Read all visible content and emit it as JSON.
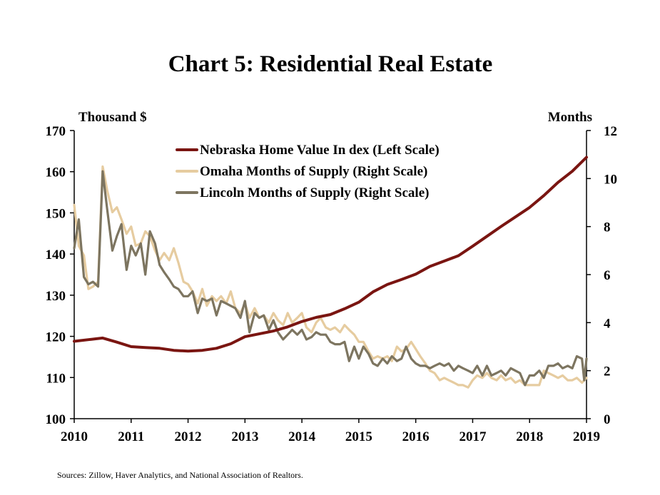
{
  "chart_data": {
    "type": "line",
    "title": "Chart 5: Residential Real Estate",
    "left_axis": {
      "label": "Thousand $",
      "min": 100,
      "max": 170,
      "ticks": [
        100,
        110,
        120,
        130,
        140,
        150,
        160,
        170
      ]
    },
    "right_axis": {
      "label": "Months",
      "min": 0,
      "max": 12,
      "ticks": [
        0,
        2,
        4,
        6,
        8,
        10,
        12
      ]
    },
    "x_axis": {
      "min": 2010,
      "max": 2019,
      "ticks": [
        "2010",
        "2011",
        "2012",
        "2013",
        "2014",
        "2015",
        "2016",
        "2017",
        "2018",
        "2019"
      ]
    },
    "grid": false,
    "legend_position": "top-center",
    "source": "Sources: Zillow, Haver Analytics, and National Association of Realtors.",
    "series": [
      {
        "name": "Nebraska Home Value In dex (Left Scale)",
        "axis": "left",
        "color": "#7a1511",
        "points": [
          [
            2010.0,
            118.8
          ],
          [
            2010.25,
            119.2
          ],
          [
            2010.5,
            119.6
          ],
          [
            2010.75,
            118.6
          ],
          [
            2011.0,
            117.5
          ],
          [
            2011.25,
            117.3
          ],
          [
            2011.5,
            117.1
          ],
          [
            2011.75,
            116.6
          ],
          [
            2012.0,
            116.4
          ],
          [
            2012.25,
            116.6
          ],
          [
            2012.5,
            117.1
          ],
          [
            2012.75,
            118.2
          ],
          [
            2013.0,
            119.9
          ],
          [
            2013.25,
            120.6
          ],
          [
            2013.5,
            121.3
          ],
          [
            2013.75,
            122.3
          ],
          [
            2014.0,
            123.6
          ],
          [
            2014.25,
            124.6
          ],
          [
            2014.5,
            125.3
          ],
          [
            2014.75,
            126.7
          ],
          [
            2015.0,
            128.3
          ],
          [
            2015.25,
            130.8
          ],
          [
            2015.5,
            132.6
          ],
          [
            2015.75,
            133.8
          ],
          [
            2016.0,
            135.1
          ],
          [
            2016.25,
            137.0
          ],
          [
            2016.5,
            138.3
          ],
          [
            2016.75,
            139.6
          ],
          [
            2017.0,
            141.9
          ],
          [
            2017.25,
            144.3
          ],
          [
            2017.5,
            146.7
          ],
          [
            2017.75,
            149.0
          ],
          [
            2018.0,
            151.3
          ],
          [
            2018.25,
            154.2
          ],
          [
            2018.5,
            157.4
          ],
          [
            2018.75,
            160.1
          ],
          [
            2019.0,
            163.5
          ]
        ]
      },
      {
        "name": "Omaha Months of Supply (Right Scale)",
        "axis": "right",
        "color": "#e6cca0",
        "points": [
          [
            2010.0,
            8.9
          ],
          [
            2010.08,
            7.2
          ],
          [
            2010.17,
            6.8
          ],
          [
            2010.25,
            5.4
          ],
          [
            2010.33,
            5.5
          ],
          [
            2010.42,
            5.7
          ],
          [
            2010.5,
            10.5
          ],
          [
            2010.58,
            9.5
          ],
          [
            2010.67,
            8.6
          ],
          [
            2010.75,
            8.8
          ],
          [
            2010.83,
            8.3
          ],
          [
            2010.92,
            7.7
          ],
          [
            2011.0,
            8.0
          ],
          [
            2011.08,
            7.2
          ],
          [
            2011.17,
            7.3
          ],
          [
            2011.25,
            7.8
          ],
          [
            2011.33,
            7.6
          ],
          [
            2011.42,
            7.0
          ],
          [
            2011.5,
            6.6
          ],
          [
            2011.58,
            6.9
          ],
          [
            2011.67,
            6.6
          ],
          [
            2011.75,
            7.1
          ],
          [
            2011.83,
            6.5
          ],
          [
            2011.92,
            5.7
          ],
          [
            2012.0,
            5.6
          ],
          [
            2012.08,
            5.3
          ],
          [
            2012.17,
            4.8
          ],
          [
            2012.25,
            5.4
          ],
          [
            2012.33,
            4.7
          ],
          [
            2012.42,
            5.1
          ],
          [
            2012.5,
            4.9
          ],
          [
            2012.58,
            5.1
          ],
          [
            2012.67,
            4.8
          ],
          [
            2012.75,
            5.3
          ],
          [
            2012.83,
            4.6
          ],
          [
            2012.92,
            4.4
          ],
          [
            2013.0,
            4.8
          ],
          [
            2013.08,
            4.2
          ],
          [
            2013.17,
            4.6
          ],
          [
            2013.25,
            4.2
          ],
          [
            2013.33,
            4.3
          ],
          [
            2013.42,
            4.0
          ],
          [
            2013.5,
            4.4
          ],
          [
            2013.58,
            4.1
          ],
          [
            2013.67,
            3.9
          ],
          [
            2013.75,
            4.4
          ],
          [
            2013.83,
            4.0
          ],
          [
            2013.92,
            4.2
          ],
          [
            2014.0,
            4.4
          ],
          [
            2014.08,
            3.8
          ],
          [
            2014.17,
            3.6
          ],
          [
            2014.25,
            4.0
          ],
          [
            2014.33,
            4.2
          ],
          [
            2014.42,
            3.8
          ],
          [
            2014.5,
            3.7
          ],
          [
            2014.58,
            3.8
          ],
          [
            2014.67,
            3.6
          ],
          [
            2014.75,
            3.9
          ],
          [
            2014.83,
            3.7
          ],
          [
            2014.92,
            3.5
          ],
          [
            2015.0,
            3.2
          ],
          [
            2015.08,
            3.2
          ],
          [
            2015.17,
            2.8
          ],
          [
            2015.25,
            2.5
          ],
          [
            2015.33,
            2.6
          ],
          [
            2015.42,
            2.5
          ],
          [
            2015.5,
            2.6
          ],
          [
            2015.58,
            2.4
          ],
          [
            2015.67,
            3.0
          ],
          [
            2015.75,
            2.8
          ],
          [
            2015.83,
            2.9
          ],
          [
            2015.92,
            3.2
          ],
          [
            2016.0,
            2.9
          ],
          [
            2016.08,
            2.6
          ],
          [
            2016.17,
            2.3
          ],
          [
            2016.25,
            2.0
          ],
          [
            2016.33,
            1.9
          ],
          [
            2016.42,
            1.6
          ],
          [
            2016.5,
            1.7
          ],
          [
            2016.58,
            1.6
          ],
          [
            2016.67,
            1.5
          ],
          [
            2016.75,
            1.4
          ],
          [
            2016.83,
            1.4
          ],
          [
            2016.92,
            1.3
          ],
          [
            2017.0,
            1.6
          ],
          [
            2017.08,
            1.8
          ],
          [
            2017.17,
            1.7
          ],
          [
            2017.25,
            1.9
          ],
          [
            2017.33,
            1.7
          ],
          [
            2017.42,
            1.6
          ],
          [
            2017.5,
            1.8
          ],
          [
            2017.58,
            1.6
          ],
          [
            2017.67,
            1.7
          ],
          [
            2017.75,
            1.5
          ],
          [
            2017.83,
            1.6
          ],
          [
            2017.92,
            1.4
          ],
          [
            2018.0,
            1.4
          ],
          [
            2018.08,
            1.4
          ],
          [
            2018.17,
            1.4
          ],
          [
            2018.25,
            2.0
          ],
          [
            2018.33,
            1.9
          ],
          [
            2018.42,
            1.8
          ],
          [
            2018.5,
            1.7
          ],
          [
            2018.58,
            1.8
          ],
          [
            2018.67,
            1.6
          ],
          [
            2018.75,
            1.6
          ],
          [
            2018.83,
            1.7
          ],
          [
            2018.92,
            1.5
          ],
          [
            2019.0,
            1.7
          ]
        ]
      },
      {
        "name": "Lincoln Months of Supply (Right Scale)",
        "axis": "right",
        "color": "#7d7560",
        "points": [
          [
            2010.0,
            7.1
          ],
          [
            2010.08,
            8.3
          ],
          [
            2010.17,
            5.9
          ],
          [
            2010.25,
            5.6
          ],
          [
            2010.33,
            5.7
          ],
          [
            2010.42,
            5.5
          ],
          [
            2010.5,
            10.3
          ],
          [
            2010.58,
            8.7
          ],
          [
            2010.67,
            7.0
          ],
          [
            2010.75,
            7.6
          ],
          [
            2010.83,
            8.1
          ],
          [
            2010.92,
            6.2
          ],
          [
            2011.0,
            7.2
          ],
          [
            2011.08,
            6.8
          ],
          [
            2011.17,
            7.3
          ],
          [
            2011.25,
            6.0
          ],
          [
            2011.33,
            7.8
          ],
          [
            2011.42,
            7.3
          ],
          [
            2011.5,
            6.4
          ],
          [
            2011.58,
            6.1
          ],
          [
            2011.67,
            5.8
          ],
          [
            2011.75,
            5.5
          ],
          [
            2011.83,
            5.4
          ],
          [
            2011.92,
            5.1
          ],
          [
            2012.0,
            5.1
          ],
          [
            2012.08,
            5.3
          ],
          [
            2012.17,
            4.4
          ],
          [
            2012.25,
            5.0
          ],
          [
            2012.33,
            4.9
          ],
          [
            2012.42,
            5.0
          ],
          [
            2012.5,
            4.3
          ],
          [
            2012.58,
            4.9
          ],
          [
            2012.67,
            4.8
          ],
          [
            2012.75,
            4.7
          ],
          [
            2012.83,
            4.6
          ],
          [
            2012.92,
            4.2
          ],
          [
            2013.0,
            4.9
          ],
          [
            2013.08,
            3.6
          ],
          [
            2013.17,
            4.4
          ],
          [
            2013.25,
            4.2
          ],
          [
            2013.33,
            4.3
          ],
          [
            2013.42,
            3.7
          ],
          [
            2013.5,
            4.1
          ],
          [
            2013.58,
            3.6
          ],
          [
            2013.67,
            3.3
          ],
          [
            2013.75,
            3.5
          ],
          [
            2013.83,
            3.7
          ],
          [
            2013.92,
            3.5
          ],
          [
            2014.0,
            3.7
          ],
          [
            2014.08,
            3.3
          ],
          [
            2014.17,
            3.4
          ],
          [
            2014.25,
            3.6
          ],
          [
            2014.33,
            3.5
          ],
          [
            2014.42,
            3.5
          ],
          [
            2014.5,
            3.2
          ],
          [
            2014.58,
            3.1
          ],
          [
            2014.67,
            3.1
          ],
          [
            2014.75,
            3.2
          ],
          [
            2014.83,
            2.4
          ],
          [
            2014.92,
            3.0
          ],
          [
            2015.0,
            2.5
          ],
          [
            2015.08,
            3.0
          ],
          [
            2015.17,
            2.7
          ],
          [
            2015.25,
            2.3
          ],
          [
            2015.33,
            2.2
          ],
          [
            2015.42,
            2.5
          ],
          [
            2015.5,
            2.3
          ],
          [
            2015.58,
            2.6
          ],
          [
            2015.67,
            2.4
          ],
          [
            2015.75,
            2.5
          ],
          [
            2015.83,
            3.0
          ],
          [
            2015.92,
            2.5
          ],
          [
            2016.0,
            2.3
          ],
          [
            2016.08,
            2.2
          ],
          [
            2016.17,
            2.2
          ],
          [
            2016.25,
            2.1
          ],
          [
            2016.33,
            2.2
          ],
          [
            2016.42,
            2.3
          ],
          [
            2016.5,
            2.2
          ],
          [
            2016.58,
            2.3
          ],
          [
            2016.67,
            2.0
          ],
          [
            2016.75,
            2.2
          ],
          [
            2016.83,
            2.1
          ],
          [
            2016.92,
            2.0
          ],
          [
            2017.0,
            1.9
          ],
          [
            2017.08,
            2.2
          ],
          [
            2017.17,
            1.8
          ],
          [
            2017.25,
            2.2
          ],
          [
            2017.33,
            1.8
          ],
          [
            2017.42,
            1.9
          ],
          [
            2017.5,
            2.0
          ],
          [
            2017.58,
            1.8
          ],
          [
            2017.67,
            2.1
          ],
          [
            2017.75,
            2.0
          ],
          [
            2017.83,
            1.9
          ],
          [
            2017.92,
            1.4
          ],
          [
            2018.0,
            1.8
          ],
          [
            2018.08,
            1.8
          ],
          [
            2018.17,
            2.0
          ],
          [
            2018.25,
            1.7
          ],
          [
            2018.33,
            2.2
          ],
          [
            2018.42,
            2.2
          ],
          [
            2018.5,
            2.3
          ],
          [
            2018.58,
            2.1
          ],
          [
            2018.67,
            2.2
          ],
          [
            2018.75,
            2.1
          ],
          [
            2018.83,
            2.6
          ],
          [
            2018.92,
            2.5
          ],
          [
            2018.96,
            1.6
          ],
          [
            2019.0,
            2.5
          ]
        ]
      }
    ]
  }
}
